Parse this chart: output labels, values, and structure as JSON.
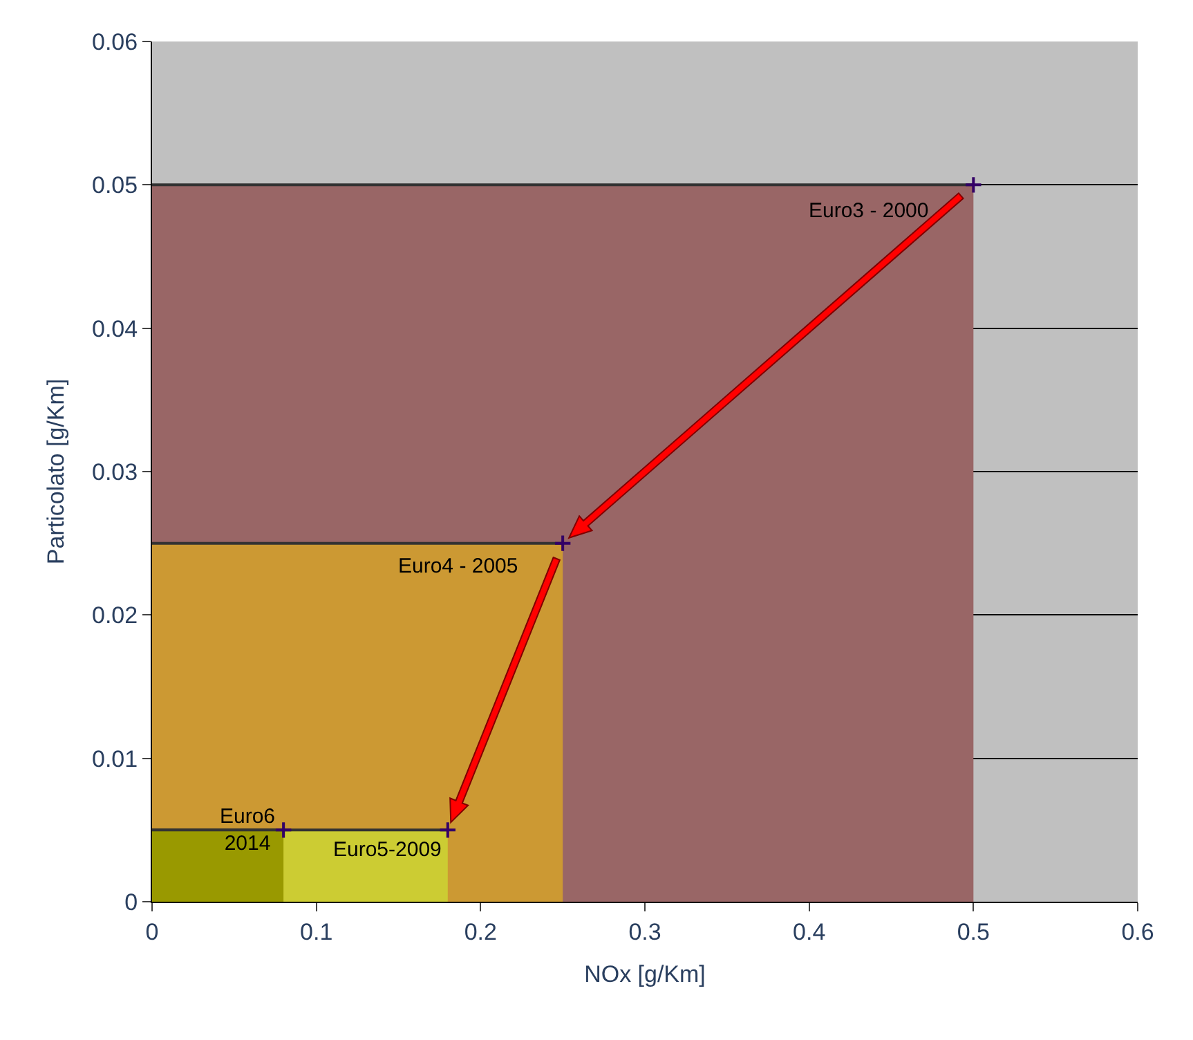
{
  "chart_data": {
    "type": "area",
    "xlabel": "NOx [g/Km]",
    "ylabel": "Particolato [g/Km]",
    "series": [
      {
        "color": "#996666",
        "x": [
          0,
          0.5
        ],
        "values": [
          0.05,
          0.05
        ]
      },
      {
        "color": "#cc9933",
        "x": [
          0,
          0.25
        ],
        "values": [
          0.025,
          0.025
        ]
      },
      {
        "color": "#cccc33",
        "x": [
          0,
          0.18
        ],
        "values": [
          0.005,
          0.005
        ]
      },
      {
        "color": "#999900",
        "x": [
          0,
          0.08
        ],
        "values": [
          0.005,
          0.005
        ]
      }
    ],
    "annotations": [
      {
        "text": "Euro3 - 2000",
        "x": 0.5,
        "y": 0.05
      },
      {
        "text": "Euro4 - 2005",
        "x": 0.25,
        "y": 0.025
      },
      {
        "text": "Euro5-2009",
        "x": 0.18,
        "y": 0.005
      },
      {
        "text": "Euro6\n2014",
        "x": 0.08,
        "y": 0.005
      }
    ],
    "xlim": [
      0,
      0.6
    ],
    "xticks": [
      0,
      0.1,
      0.2,
      0.3,
      0.4,
      0.5,
      0.6
    ],
    "ylim": [
      0,
      0.06
    ],
    "yticks": [
      0,
      0.01,
      0.02,
      0.03,
      0.04,
      0.05,
      0.06
    ],
    "grid": "y",
    "marker": "cross"
  }
}
